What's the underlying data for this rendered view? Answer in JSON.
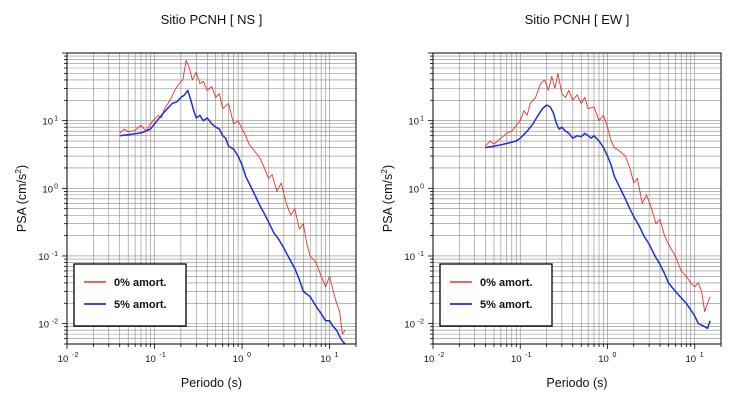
{
  "chart_data": [
    {
      "type": "line",
      "title": "Sitio PCNH [ NS ]",
      "xlabel": "Periodo (s)",
      "ylabel_main": "PSA (cm/s",
      "ylabel_sup": "2",
      "ylabel_end": ")",
      "xscale": "log",
      "yscale": "log",
      "xlim": [
        0.01,
        20
      ],
      "ylim": [
        0.005,
        100
      ],
      "grid": true,
      "legend_position": "bottom-left",
      "x_ticks": [
        {
          "base": "10",
          "exp": "-2"
        },
        {
          "base": "10",
          "exp": "-1"
        },
        {
          "base": "10",
          "exp": "0"
        },
        {
          "base": "10",
          "exp": "1"
        }
      ],
      "y_ticks": [
        {
          "base": "10",
          "exp": "-2"
        },
        {
          "base": "10",
          "exp": "-1"
        },
        {
          "base": "10",
          "exp": "0"
        },
        {
          "base": "10",
          "exp": "1"
        }
      ],
      "series": [
        {
          "name": "0% amort.",
          "color": "#e8332c",
          "x": [
            0.04,
            0.045,
            0.05,
            0.06,
            0.07,
            0.08,
            0.09,
            0.1,
            0.11,
            0.12,
            0.13,
            0.15,
            0.17,
            0.19,
            0.21,
            0.23,
            0.25,
            0.27,
            0.3,
            0.33,
            0.36,
            0.4,
            0.45,
            0.5,
            0.55,
            0.6,
            0.7,
            0.8,
            0.9,
            1.0,
            1.1,
            1.2,
            1.4,
            1.6,
            1.8,
            2.0,
            2.2,
            2.5,
            2.8,
            3.2,
            3.6,
            4.0,
            4.5,
            5.0,
            5.5,
            6.0,
            7.0,
            8.0,
            9.0,
            10,
            11,
            12,
            13,
            14,
            15
          ],
          "y": [
            6.5,
            7.5,
            6.8,
            7.2,
            8.5,
            7.0,
            9.0,
            10.5,
            12,
            11,
            15,
            20,
            28,
            35,
            40,
            78,
            60,
            40,
            52,
            35,
            38,
            28,
            32,
            22,
            25,
            15,
            18,
            9.0,
            10,
            7.5,
            6.0,
            4.5,
            3.5,
            2.8,
            2.0,
            1.4,
            1.6,
            0.9,
            1.2,
            0.6,
            0.4,
            0.5,
            0.25,
            0.3,
            0.15,
            0.1,
            0.08,
            0.05,
            0.035,
            0.05,
            0.03,
            0.02,
            0.015,
            0.007,
            0.008
          ]
        },
        {
          "name": "5% amort.",
          "color": "#1c2fd6",
          "x": [
            0.04,
            0.05,
            0.06,
            0.07,
            0.08,
            0.09,
            0.1,
            0.12,
            0.14,
            0.16,
            0.18,
            0.2,
            0.22,
            0.24,
            0.26,
            0.28,
            0.3,
            0.33,
            0.36,
            0.4,
            0.45,
            0.5,
            0.55,
            0.6,
            0.65,
            0.7,
            0.8,
            0.9,
            1.0,
            1.1,
            1.2,
            1.4,
            1.6,
            1.8,
            2.0,
            2.3,
            2.6,
            3.0,
            3.5,
            4.0,
            4.5,
            5.0,
            6.0,
            7.0,
            8.0,
            9.0,
            10,
            11,
            12,
            13,
            14,
            15
          ],
          "y": [
            6.0,
            6.2,
            6.4,
            6.6,
            7.0,
            7.5,
            9.0,
            12,
            15,
            18,
            19,
            22,
            24,
            28,
            20,
            14,
            11,
            12,
            10,
            11,
            9.0,
            8.0,
            7.5,
            6.0,
            5.5,
            4.2,
            3.8,
            3.0,
            2.2,
            1.5,
            1.2,
            0.8,
            0.55,
            0.42,
            0.32,
            0.22,
            0.18,
            0.13,
            0.09,
            0.065,
            0.045,
            0.03,
            0.025,
            0.018,
            0.014,
            0.011,
            0.011,
            0.009,
            0.008,
            0.0065,
            0.0055,
            0.005
          ]
        }
      ]
    },
    {
      "type": "line",
      "title": "Sitio PCNH [ EW ]",
      "xlabel": "Periodo (s)",
      "ylabel_main": "PSA (cm/s",
      "ylabel_sup": "2",
      "ylabel_end": ")",
      "xscale": "log",
      "yscale": "log",
      "xlim": [
        0.01,
        20
      ],
      "ylim": [
        0.005,
        100
      ],
      "grid": true,
      "legend_position": "bottom-left",
      "x_ticks": [
        {
          "base": "10",
          "exp": "-2"
        },
        {
          "base": "10",
          "exp": "-1"
        },
        {
          "base": "10",
          "exp": "0"
        },
        {
          "base": "10",
          "exp": "1"
        }
      ],
      "y_ticks": [
        {
          "base": "10",
          "exp": "-2"
        },
        {
          "base": "10",
          "exp": "-1"
        },
        {
          "base": "10",
          "exp": "0"
        },
        {
          "base": "10",
          "exp": "1"
        }
      ],
      "series": [
        {
          "name": "0% amort.",
          "color": "#e8332c",
          "x": [
            0.04,
            0.045,
            0.05,
            0.06,
            0.07,
            0.08,
            0.09,
            0.1,
            0.11,
            0.12,
            0.13,
            0.15,
            0.17,
            0.19,
            0.21,
            0.23,
            0.25,
            0.27,
            0.3,
            0.33,
            0.36,
            0.4,
            0.45,
            0.5,
            0.55,
            0.6,
            0.7,
            0.8,
            0.9,
            1.0,
            1.1,
            1.2,
            1.4,
            1.6,
            1.8,
            2.0,
            2.2,
            2.5,
            2.8,
            3.2,
            3.6,
            4.0,
            4.5,
            5.0,
            5.5,
            6.0,
            7.0,
            8.0,
            9.0,
            10,
            11,
            12,
            13,
            14,
            15
          ],
          "y": [
            4.2,
            5.0,
            4.5,
            5.5,
            6.5,
            7.0,
            8.5,
            10,
            14,
            12,
            18,
            22,
            35,
            40,
            28,
            45,
            30,
            50,
            25,
            22,
            28,
            20,
            24,
            18,
            22,
            15,
            16,
            10,
            12,
            8.0,
            5.0,
            4.0,
            3.5,
            3.0,
            2.0,
            1.2,
            1.4,
            0.6,
            0.8,
            0.5,
            0.3,
            0.35,
            0.2,
            0.15,
            0.12,
            0.1,
            0.06,
            0.05,
            0.04,
            0.035,
            0.04,
            0.03,
            0.015,
            0.02,
            0.025
          ]
        },
        {
          "name": "5% amort.",
          "color": "#1c2fd6",
          "x": [
            0.04,
            0.05,
            0.06,
            0.07,
            0.08,
            0.09,
            0.1,
            0.12,
            0.14,
            0.16,
            0.18,
            0.2,
            0.22,
            0.24,
            0.26,
            0.28,
            0.3,
            0.33,
            0.36,
            0.4,
            0.45,
            0.5,
            0.55,
            0.6,
            0.65,
            0.7,
            0.8,
            0.9,
            1.0,
            1.1,
            1.2,
            1.4,
            1.6,
            1.8,
            2.0,
            2.3,
            2.6,
            3.0,
            3.5,
            4.0,
            4.5,
            5.0,
            6.0,
            7.0,
            8.0,
            9.0,
            10,
            11,
            12,
            13,
            14,
            15
          ],
          "y": [
            4.0,
            4.2,
            4.4,
            4.6,
            4.8,
            5.0,
            5.5,
            7.0,
            9.0,
            12,
            15,
            17,
            16,
            13,
            9.0,
            7.5,
            8.0,
            7.0,
            6.5,
            5.5,
            6.0,
            5.8,
            6.5,
            6.0,
            5.5,
            6.0,
            5.0,
            4.0,
            3.0,
            2.2,
            1.5,
            1.0,
            0.7,
            0.5,
            0.38,
            0.28,
            0.2,
            0.15,
            0.1,
            0.075,
            0.055,
            0.04,
            0.03,
            0.024,
            0.02,
            0.016,
            0.013,
            0.01,
            0.0095,
            0.009,
            0.0085,
            0.011
          ]
        }
      ]
    }
  ]
}
